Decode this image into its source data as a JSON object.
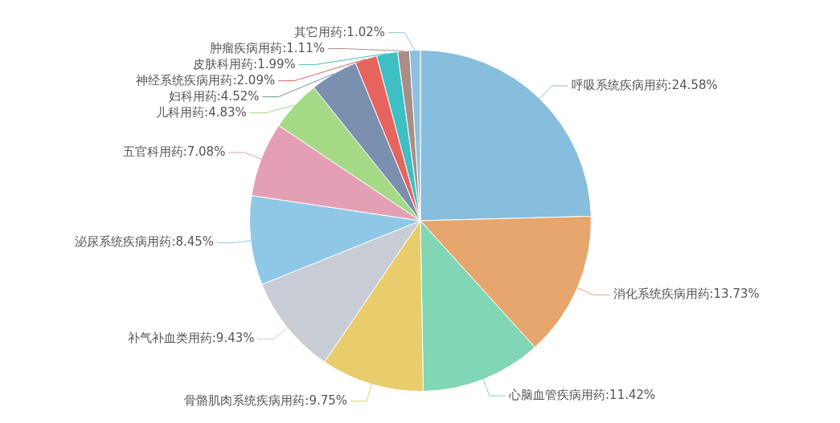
{
  "chart_data": {
    "type": "pie",
    "categories": [
      "呼吸系统疾病用药",
      "消化系统疾病用药",
      "心脑血管疾病用药",
      "骨骼肌肉系统疾病用药",
      "补气补血类用药",
      "泌尿系统疾病用药",
      "五官科用药",
      "儿科用药",
      "妇科用药",
      "神经系统疾病用药",
      "皮肤科用药",
      "肿瘤疾病用药",
      "其它用药"
    ],
    "values": [
      24.58,
      13.73,
      11.42,
      9.75,
      9.43,
      8.45,
      7.08,
      4.83,
      4.52,
      2.09,
      1.99,
      1.11,
      1.02
    ],
    "value_labels": [
      "24.58%",
      "13.73%",
      "11.42%",
      "9.75%",
      "9.43%",
      "8.45%",
      "7.08%",
      "4.83%",
      "4.52%",
      "2.09%",
      "1.99%",
      "1.11%",
      "1.02%"
    ],
    "colors": [
      "#87bddd",
      "#e6a66d",
      "#80d6b5",
      "#e9cc6b",
      "#c8ccd4",
      "#8ec8e6",
      "#e3a0b4",
      "#a4d986",
      "#7b8fae",
      "#e6645e",
      "#3dbfc4",
      "#a88e87",
      "#8cc2e0"
    ],
    "legend": false
  }
}
